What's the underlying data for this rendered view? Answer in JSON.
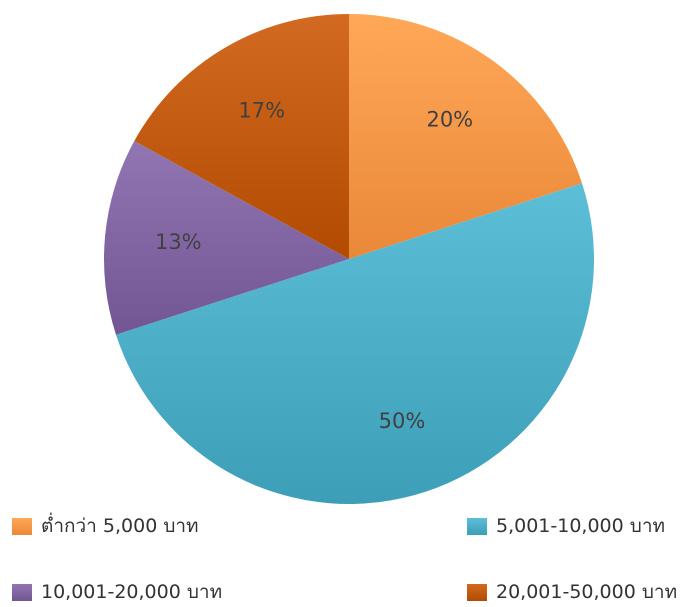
{
  "chart_data": {
    "type": "pie",
    "categories": [
      "ต่ำกว่า 5,000 บาท",
      "5,001-10,000 บาท",
      "10,001-20,000 บาท",
      "20,001-50,000 บาท"
    ],
    "values": [
      20,
      50,
      13,
      17
    ],
    "data_labels": [
      "20%",
      "50%",
      "13%",
      "17%"
    ],
    "colors": [
      "#F79646",
      "#4BACC6",
      "#8064A2",
      "#C0590F"
    ],
    "start_angle_deg": 0,
    "direction": "clockwise",
    "legend_position": "bottom"
  }
}
